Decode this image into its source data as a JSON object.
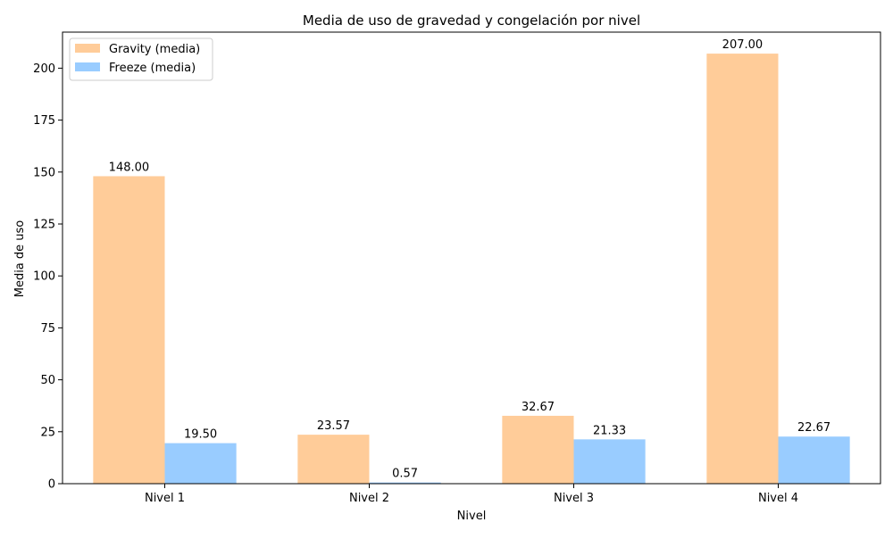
{
  "chart_data": {
    "type": "bar",
    "title": "Media de uso de gravedad y congelación por nivel",
    "xlabel": "Nivel",
    "ylabel": "Media de uso",
    "categories": [
      "Nivel 1",
      "Nivel 2",
      "Nivel 3",
      "Nivel 4"
    ],
    "series": [
      {
        "name": "Gravity (media)",
        "values": [
          148.0,
          23.57,
          32.67,
          207.0
        ],
        "labels": [
          "148.00",
          "23.57",
          "32.67",
          "207.00"
        ],
        "color": "#FFCC99"
      },
      {
        "name": "Freeze (media)",
        "values": [
          19.5,
          0.57,
          21.33,
          22.67
        ],
        "labels": [
          "19.50",
          "0.57",
          "21.33",
          "22.67"
        ],
        "color": "#99CCFF"
      }
    ],
    "ylim": [
      0,
      217.35
    ],
    "yticks": [
      0,
      25,
      50,
      75,
      100,
      125,
      150,
      175,
      200
    ],
    "grid": false,
    "legend_position": "top-left"
  }
}
